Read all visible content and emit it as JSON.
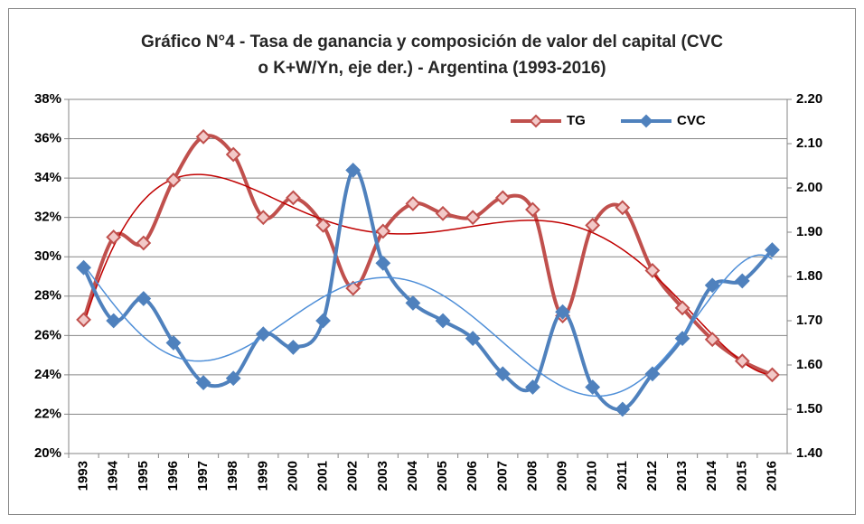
{
  "chart_data": {
    "type": "line",
    "title": [
      "Gráfico N°4 - Tasa de ganancia y composición de valor del capital (CVC",
      "o K+W/Yn, eje der.)  - Argentina (1993-2016)"
    ],
    "categories": [
      "1993",
      "1994",
      "1995",
      "1996",
      "1997",
      "1998",
      "1999",
      "2000",
      "2001",
      "2002",
      "2003",
      "2004",
      "2005",
      "2006",
      "2007",
      "2008",
      "2009",
      "2010",
      "2011",
      "2012",
      "2013",
      "2014",
      "2015",
      "2016"
    ],
    "series": [
      {
        "name": "TG",
        "color": "#c0504d",
        "marker_fill": "#f2c9c8",
        "trend_color": "#c00000",
        "trendline": "polynomial",
        "values": [
          26.8,
          31.0,
          30.7,
          33.9,
          36.1,
          35.2,
          32.0,
          33.0,
          31.6,
          28.4,
          31.3,
          32.7,
          32.2,
          32.0,
          33.0,
          32.4,
          27.0,
          31.6,
          32.5,
          29.3,
          27.4,
          25.8,
          24.7,
          24.0
        ]
      },
      {
        "name": "CVC",
        "color": "#4f81bd",
        "marker_fill": "#4f81bd",
        "trend_color": "#4f8fd8",
        "trendline": "polynomial",
        "axis": "y2",
        "values": [
          1.82,
          1.7,
          1.75,
          1.65,
          1.56,
          1.57,
          1.67,
          1.64,
          1.7,
          2.04,
          1.83,
          1.74,
          1.7,
          1.66,
          1.58,
          1.55,
          1.72,
          1.55,
          1.5,
          1.58,
          1.66,
          1.78,
          1.79,
          1.86
        ]
      }
    ],
    "ylim": [
      20,
      38
    ],
    "yticks": [
      {
        "value": 20,
        "label": "20%"
      },
      {
        "value": 22,
        "label": "22%"
      },
      {
        "value": 24,
        "label": "24%"
      },
      {
        "value": 26,
        "label": "26%"
      },
      {
        "value": 28,
        "label": "28%"
      },
      {
        "value": 30,
        "label": "30%"
      },
      {
        "value": 32,
        "label": "32%"
      },
      {
        "value": 34,
        "label": "34%"
      },
      {
        "value": 36,
        "label": "36%"
      },
      {
        "value": 38,
        "label": "38%"
      }
    ],
    "y2lim": [
      1.4,
      2.2
    ],
    "y2ticks": [
      {
        "value": 1.4,
        "label": "1.40"
      },
      {
        "value": 1.5,
        "label": "1.50"
      },
      {
        "value": 1.6,
        "label": "1.60"
      },
      {
        "value": 1.7,
        "label": "1.70"
      },
      {
        "value": 1.8,
        "label": "1.80"
      },
      {
        "value": 1.9,
        "label": "1.90"
      },
      {
        "value": 2.0,
        "label": "2.00"
      },
      {
        "value": 2.1,
        "label": "2.10"
      },
      {
        "value": 2.2,
        "label": "2.20"
      }
    ],
    "grid": true,
    "legend": "top"
  }
}
